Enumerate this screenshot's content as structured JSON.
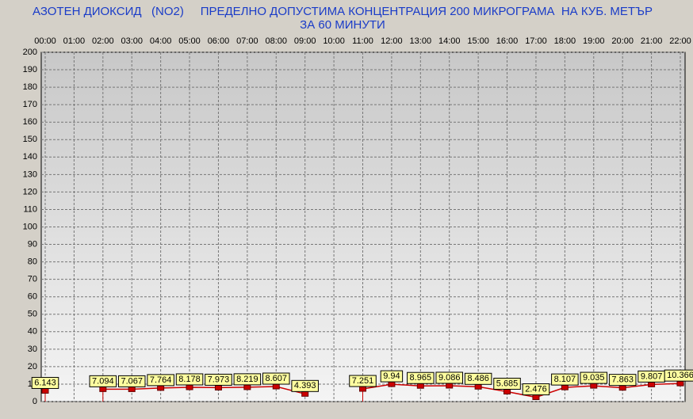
{
  "chart_data": {
    "type": "line",
    "title": "АЗОТЕН ДИОКСИД   (NO2)     ПРЕДЕЛНО ДОПУСТИМА КОНЦЕНТРАЦИЯ 200 МИКРОГРАМА  НА КУБ. МЕТЪР",
    "subtitle": "ЗА 60 МИНУТИ",
    "categories": [
      "00:00",
      "01:00",
      "02:00",
      "03:00",
      "04:00",
      "05:00",
      "06:00",
      "07:00",
      "08:00",
      "09:00",
      "10:00",
      "11:00",
      "12:00",
      "13:00",
      "14:00",
      "15:00",
      "16:00",
      "17:00",
      "18:00",
      "19:00",
      "20:00",
      "21:00",
      "22:00"
    ],
    "series": [
      {
        "color": "#cc0000",
        "values": [
          6.143,
          null,
          7.094,
          7.067,
          7.764,
          8.178,
          7.973,
          8.219,
          8.607,
          4.393,
          null,
          7.251,
          9.94,
          8.965,
          9.086,
          8.486,
          5.685,
          2.476,
          8.107,
          9.035,
          7.863,
          9.807,
          10.366
        ]
      }
    ],
    "ylim": [
      0,
      200
    ],
    "yticks": [
      0,
      10,
      20,
      30,
      40,
      50,
      60,
      70,
      80,
      90,
      100,
      110,
      120,
      130,
      140,
      150,
      160,
      170,
      180,
      190,
      200
    ],
    "grid": true
  }
}
